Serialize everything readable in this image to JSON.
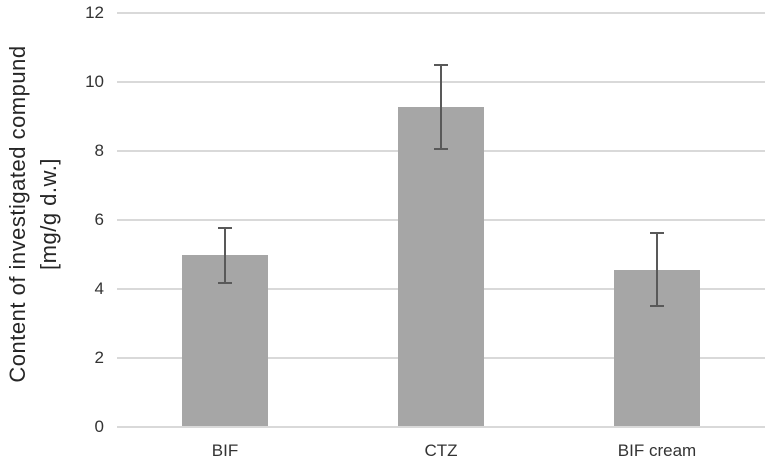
{
  "chart_data": {
    "type": "bar",
    "title": "",
    "categories": [
      "BIF",
      "CTZ",
      "BIF cream"
    ],
    "values": [
      4.97,
      9.28,
      4.55
    ],
    "error_bars": [
      0.8,
      1.22,
      1.06
    ],
    "ylabel": "Content of investigated compund [mg/g d.w.]",
    "ylabel_line1": "Content of investigated compund",
    "ylabel_line2": "[mg/g d.w.]",
    "xlabel": "",
    "yticks": [
      0,
      2,
      4,
      6,
      8,
      10,
      12
    ],
    "ylim": [
      0,
      12
    ],
    "grid": true,
    "legend": false,
    "colors": {
      "bar": "#a6a6a6",
      "error_bar": "#595959",
      "gridline": "#d9d9d9",
      "tick_text": "#333333",
      "title_text": "#262626",
      "background": "#ffffff"
    }
  }
}
